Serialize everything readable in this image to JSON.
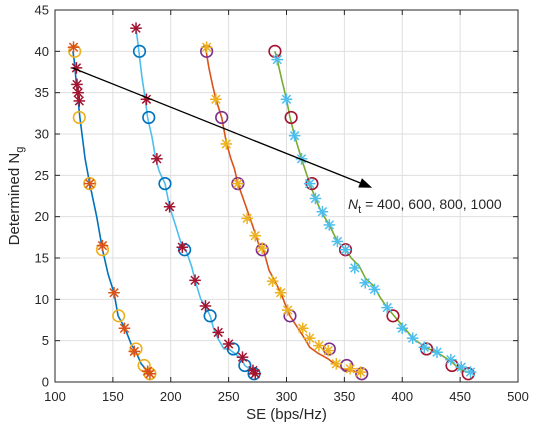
{
  "chart_data": {
    "type": "scatter",
    "xlabel": "SE (bps/Hz)",
    "ylabel": "Determined  N",
    "ylabel_subscript": "g",
    "xlim": [
      100,
      500
    ],
    "ylim": [
      0,
      45
    ],
    "xticks": [
      100,
      150,
      200,
      250,
      300,
      350,
      400,
      450,
      500
    ],
    "yticks": [
      0,
      5,
      10,
      15,
      20,
      25,
      30,
      35,
      40,
      45
    ],
    "grid": true,
    "annotation": {
      "prefix": "N",
      "subscript": "t",
      "text": " =  400, 600, 800, 1000",
      "arrow_from": [
        115,
        38
      ],
      "arrow_to": [
        374,
        23.5
      ]
    },
    "colors": {
      "blue": "#0072BD",
      "orange": "#D95319",
      "yellow": "#EDB120",
      "purple": "#7E2F8E",
      "green": "#77AC30",
      "cyan": "#4DBEEE",
      "crimson": "#A2142F",
      "arrow": "#000000"
    },
    "curves": [
      {
        "color": "#0072BD",
        "points": [
          [
            115.5,
            40
          ],
          [
            116.5,
            39
          ],
          [
            117.5,
            37.5
          ],
          [
            118.5,
            36
          ],
          [
            119.5,
            35
          ],
          [
            120,
            34
          ],
          [
            121.5,
            32
          ],
          [
            126,
            27
          ],
          [
            130,
            24
          ],
          [
            136,
            20
          ],
          [
            141,
            16
          ],
          [
            146,
            13
          ],
          [
            151,
            10.8
          ],
          [
            154.5,
            8
          ],
          [
            160.5,
            6.5
          ],
          [
            166,
            4.5
          ],
          [
            169.5,
            3.8
          ],
          [
            174.5,
            2.2
          ],
          [
            180,
            1.3
          ],
          [
            182.5,
            1
          ]
        ],
        "markers": [
          {
            "shape": "o",
            "color": "#EDB120",
            "pts": [
              [
                117,
                40
              ],
              [
                121,
                32
              ],
              [
                130,
                24
              ],
              [
                141,
                16
              ],
              [
                155,
                8
              ],
              [
                170,
                4
              ],
              [
                177,
                2
              ],
              [
                182,
                1
              ]
            ]
          },
          {
            "shape": "*",
            "color": "#D95319",
            "pts": [
              [
                116,
                40.5
              ],
              [
                130,
                24
              ],
              [
                141,
                16.5
              ],
              [
                151,
                10.8
              ],
              [
                160,
                6.5
              ],
              [
                168.5,
                3.7
              ],
              [
                180,
                1.3
              ],
              [
                182,
                1
              ]
            ]
          },
          {
            "shape": "*",
            "color": "#A2142F",
            "pts": [
              [
                118.5,
                38
              ],
              [
                119,
                36
              ],
              [
                120,
                35
              ],
              [
                121,
                34
              ]
            ]
          }
        ]
      },
      {
        "color": "#4DBEEE",
        "points": [
          [
            170,
            42.8
          ],
          [
            172.5,
            40
          ],
          [
            175,
            37
          ],
          [
            178,
            34.2
          ],
          [
            180,
            32
          ],
          [
            184,
            29.5
          ],
          [
            187,
            27
          ],
          [
            190,
            25.5
          ],
          [
            195,
            24
          ],
          [
            199,
            21.2
          ],
          [
            204,
            19
          ],
          [
            210,
            16.3
          ],
          [
            213,
            16
          ],
          [
            218,
            14
          ],
          [
            221,
            12.3
          ],
          [
            226,
            10
          ],
          [
            230,
            9.2
          ],
          [
            234,
            8
          ],
          [
            237,
            6.5
          ],
          [
            241,
            5.2
          ],
          [
            246,
            4
          ],
          [
            250,
            4
          ],
          [
            255,
            3.5
          ],
          [
            261,
            2.8
          ],
          [
            264,
            2
          ],
          [
            269,
            1.5
          ],
          [
            272,
            1.2
          ],
          [
            273,
            1
          ]
        ],
        "markers": [
          {
            "shape": "o",
            "color": "#0072BD",
            "pts": [
              [
                173,
                40
              ],
              [
                181,
                32
              ],
              [
                195,
                24
              ],
              [
                212,
                16
              ],
              [
                234,
                8
              ],
              [
                254,
                4
              ],
              [
                264,
                2
              ],
              [
                272,
                1
              ]
            ]
          },
          {
            "shape": "*",
            "color": "#A2142F",
            "pts": [
              [
                170,
                42.8
              ],
              [
                179,
                34.2
              ],
              [
                188,
                27
              ],
              [
                199,
                21.2
              ],
              [
                210,
                16.3
              ],
              [
                221,
                12.3
              ],
              [
                230,
                9.2
              ],
              [
                241,
                6
              ],
              [
                250,
                4.6
              ],
              [
                262,
                3
              ],
              [
                271,
                1.4
              ],
              [
                273,
                1
              ]
            ]
          }
        ]
      },
      {
        "color": "#D95319",
        "points": [
          [
            230,
            40.5
          ],
          [
            233,
            38
          ],
          [
            236,
            36
          ],
          [
            239,
            34.2
          ],
          [
            244,
            32
          ],
          [
            248,
            29
          ],
          [
            252,
            27
          ],
          [
            255,
            25.8
          ],
          [
            258,
            24
          ],
          [
            263,
            22
          ],
          [
            268,
            20
          ],
          [
            273,
            18
          ],
          [
            277,
            16.2
          ],
          [
            280,
            16
          ],
          [
            285,
            13.5
          ],
          [
            290,
            12.2
          ],
          [
            295,
            10.8
          ],
          [
            300,
            9
          ],
          [
            303,
            8
          ],
          [
            309,
            6.7
          ],
          [
            316,
            5.2
          ],
          [
            320,
            4.2
          ],
          [
            327,
            3.5
          ],
          [
            336,
            2.8
          ],
          [
            343,
            2
          ],
          [
            350,
            1.5
          ],
          [
            359,
            1.3
          ],
          [
            364,
            1
          ]
        ],
        "markers": [
          {
            "shape": "o",
            "color": "#7E2F8E",
            "pts": [
              [
                231,
                40
              ],
              [
                244,
                32
              ],
              [
                258,
                24
              ],
              [
                279,
                16
              ],
              [
                303,
                8
              ],
              [
                337,
                4
              ],
              [
                352,
                2
              ],
              [
                365,
                1
              ]
            ]
          },
          {
            "shape": "*",
            "color": "#EDB120",
            "pts": [
              [
                231,
                40.5
              ],
              [
                239,
                34.2
              ],
              [
                248,
                28.8
              ],
              [
                258,
                24
              ],
              [
                266,
                19.8
              ],
              [
                273,
                17.7
              ],
              [
                279,
                16.2
              ],
              [
                288,
                12.2
              ],
              [
                295,
                10.8
              ],
              [
                301,
                8.7
              ],
              [
                314,
                6.5
              ],
              [
                320,
                5.3
              ],
              [
                328,
                4.4
              ],
              [
                336,
                3.8
              ],
              [
                343,
                2.2
              ],
              [
                355,
                1.6
              ],
              [
                364,
                1.2
              ]
            ]
          }
        ]
      },
      {
        "color": "#77AC30",
        "points": [
          [
            290,
            40
          ],
          [
            292,
            39
          ],
          [
            296,
            36.5
          ],
          [
            300,
            34.2
          ],
          [
            303,
            32
          ],
          [
            307,
            29.8
          ],
          [
            313,
            27
          ],
          [
            320,
            24
          ],
          [
            325,
            22.2
          ],
          [
            330,
            20.6
          ],
          [
            337,
            19
          ],
          [
            344,
            17
          ],
          [
            351,
            16
          ],
          [
            356,
            15
          ],
          [
            363,
            14
          ],
          [
            368,
            12.6
          ],
          [
            376,
            11.5
          ],
          [
            381,
            10.2
          ],
          [
            387,
            9
          ],
          [
            393,
            8
          ],
          [
            402,
            6.5
          ],
          [
            410,
            5.2
          ],
          [
            420,
            4.2
          ],
          [
            431,
            3.5
          ],
          [
            442,
            2.5
          ],
          [
            450,
            1.5
          ],
          [
            457,
            1.2
          ],
          [
            459,
            1
          ]
        ],
        "markers": [
          {
            "shape": "o",
            "color": "#A2142F",
            "pts": [
              [
                290,
                40
              ],
              [
                304,
                32
              ],
              [
                322,
                24
              ],
              [
                351,
                16
              ],
              [
                392,
                8
              ],
              [
                421,
                4
              ],
              [
                443,
                2
              ],
              [
                457,
                1
              ]
            ]
          },
          {
            "shape": "*",
            "color": "#4DBEEE",
            "pts": [
              [
                292,
                39
              ],
              [
                300,
                34.2
              ],
              [
                307,
                29.8
              ],
              [
                313,
                27
              ],
              [
                320,
                24
              ],
              [
                325,
                22.2
              ],
              [
                331,
                20.6
              ],
              [
                337,
                19
              ],
              [
                344,
                17
              ],
              [
                351,
                16
              ],
              [
                359,
                13.8
              ],
              [
                368,
                12
              ],
              [
                376,
                11.2
              ],
              [
                387,
                9
              ],
              [
                400,
                6.5
              ],
              [
                409,
                5.3
              ],
              [
                419,
                4.2
              ],
              [
                430,
                3.6
              ],
              [
                442,
                2.7
              ],
              [
                451,
                1.8
              ],
              [
                459,
                1.2
              ]
            ]
          }
        ]
      }
    ]
  }
}
